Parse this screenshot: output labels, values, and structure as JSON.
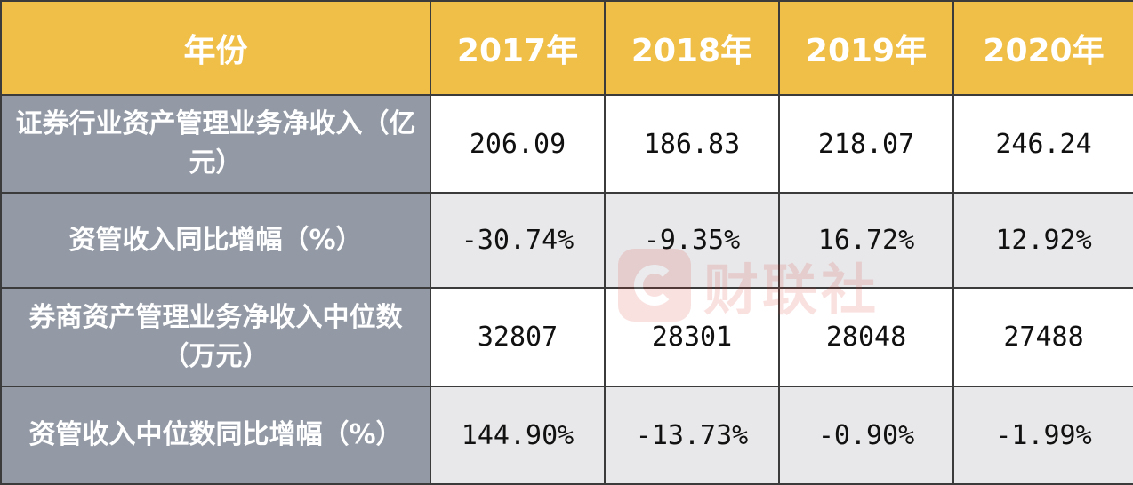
{
  "chart_data": {
    "type": "table",
    "columns": [
      "年份",
      "2017年",
      "2018年",
      "2019年",
      "2020年"
    ],
    "rows": [
      {
        "label": "证券行业资产管理业务净收入（亿元）",
        "values": [
          "206.09",
          "186.83",
          "218.07",
          "246.24"
        ]
      },
      {
        "label": "资管收入同比增幅（%）",
        "values": [
          "-30.74%",
          "-9.35%",
          "16.72%",
          "12.92%"
        ]
      },
      {
        "label": "券商资产管理业务净收入中位数（万元）",
        "values": [
          "32807",
          "28301",
          "28048",
          "27488"
        ]
      },
      {
        "label": "资管收入中位数同比增幅（%）",
        "values": [
          "144.90%",
          "-13.73%",
          "-0.90%",
          "-1.99%"
        ]
      }
    ]
  },
  "watermark": {
    "text": "财联社"
  },
  "colors": {
    "header_bg": "#f0bf47",
    "label_bg": "#939aa5",
    "alt_row_bg": "#e8e8ea",
    "border": "#3b3b3b",
    "watermark": "#d9302a"
  }
}
